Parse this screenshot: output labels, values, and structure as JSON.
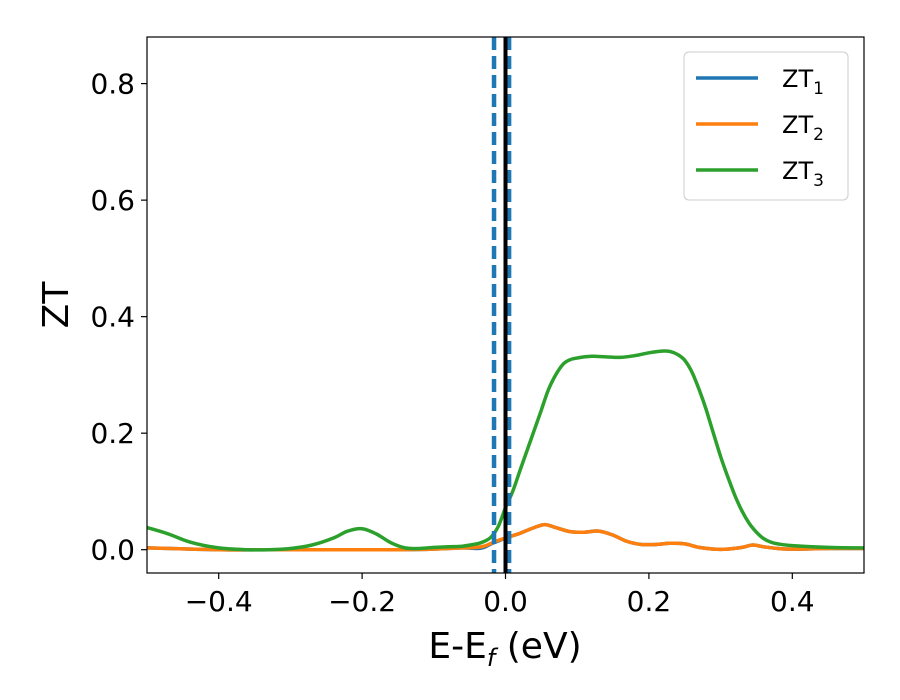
{
  "chart_data": {
    "type": "line",
    "xlabel_main": "E-E",
    "xlabel_sub": "f",
    "xlabel_unit": " (eV)",
    "ylabel": "ZT",
    "xlim": [
      -0.5,
      0.5
    ],
    "ylim": [
      -0.04,
      0.88
    ],
    "xticks": [
      -0.4,
      -0.2,
      0.0,
      0.2,
      0.4
    ],
    "xtick_labels": [
      "−0.4",
      "−0.2",
      "0.0",
      "0.2",
      "0.4"
    ],
    "yticks": [
      0.0,
      0.2,
      0.4,
      0.6,
      0.8
    ],
    "ytick_labels": [
      "0.0",
      "0.2",
      "0.4",
      "0.6",
      "0.8"
    ],
    "grid": false,
    "legend_position": "top-right",
    "series": [
      {
        "name": "ZT",
        "name_sub": "1",
        "color": "#1f77b4",
        "x": [
          -0.5,
          -0.4,
          -0.3,
          -0.2,
          -0.15,
          -0.1,
          -0.06,
          -0.04,
          -0.03,
          -0.02,
          -0.01,
          0.0,
          0.01,
          0.02,
          0.04,
          0.055,
          0.07,
          0.09,
          0.11,
          0.13,
          0.15,
          0.17,
          0.19,
          0.21,
          0.23,
          0.25,
          0.27,
          0.29,
          0.31,
          0.33,
          0.345,
          0.36,
          0.38,
          0.4,
          0.45,
          0.5
        ],
        "y": [
          0.003,
          0.0,
          0.0,
          0.0,
          0.0,
          0.001,
          0.003,
          0.002,
          0.004,
          0.01,
          0.015,
          0.02,
          0.024,
          0.028,
          0.038,
          0.043,
          0.038,
          0.031,
          0.03,
          0.032,
          0.025,
          0.014,
          0.009,
          0.009,
          0.011,
          0.01,
          0.004,
          0.001,
          0.001,
          0.004,
          0.008,
          0.005,
          0.002,
          0.001,
          0.002,
          0.002
        ]
      },
      {
        "name": "ZT",
        "name_sub": "2",
        "color": "#ff7f0e",
        "x": [
          -0.5,
          -0.4,
          -0.3,
          -0.2,
          -0.15,
          -0.1,
          -0.06,
          -0.04,
          -0.03,
          -0.02,
          -0.01,
          0.0,
          0.01,
          0.02,
          0.04,
          0.055,
          0.07,
          0.09,
          0.11,
          0.13,
          0.15,
          0.17,
          0.19,
          0.21,
          0.23,
          0.25,
          0.27,
          0.29,
          0.31,
          0.33,
          0.345,
          0.36,
          0.38,
          0.4,
          0.45,
          0.5
        ],
        "y": [
          0.003,
          0.0,
          0.0,
          0.0,
          0.0,
          0.001,
          0.003,
          0.004,
          0.006,
          0.011,
          0.016,
          0.02,
          0.024,
          0.028,
          0.038,
          0.043,
          0.038,
          0.031,
          0.03,
          0.032,
          0.025,
          0.014,
          0.009,
          0.009,
          0.011,
          0.01,
          0.004,
          0.001,
          0.001,
          0.004,
          0.008,
          0.005,
          0.002,
          0.001,
          0.002,
          0.002
        ]
      },
      {
        "name": "ZT",
        "name_sub": "3",
        "color": "#2ca02c",
        "x": [
          -0.5,
          -0.47,
          -0.44,
          -0.4,
          -0.36,
          -0.33,
          -0.3,
          -0.27,
          -0.24,
          -0.22,
          -0.2,
          -0.18,
          -0.16,
          -0.14,
          -0.12,
          -0.1,
          -0.08,
          -0.06,
          -0.04,
          -0.03,
          -0.02,
          -0.01,
          0.0,
          0.01,
          0.02,
          0.03,
          0.04,
          0.05,
          0.06,
          0.07,
          0.08,
          0.09,
          0.1,
          0.12,
          0.14,
          0.16,
          0.18,
          0.2,
          0.22,
          0.23,
          0.24,
          0.25,
          0.26,
          0.27,
          0.28,
          0.29,
          0.3,
          0.31,
          0.32,
          0.33,
          0.34,
          0.35,
          0.36,
          0.37,
          0.38,
          0.4,
          0.45,
          0.5
        ],
        "y": [
          0.038,
          0.027,
          0.013,
          0.003,
          0.0,
          0.0,
          0.002,
          0.008,
          0.02,
          0.032,
          0.036,
          0.027,
          0.012,
          0.003,
          0.002,
          0.004,
          0.005,
          0.006,
          0.01,
          0.014,
          0.022,
          0.04,
          0.072,
          0.1,
          0.135,
          0.17,
          0.205,
          0.24,
          0.275,
          0.3,
          0.318,
          0.326,
          0.329,
          0.332,
          0.331,
          0.33,
          0.333,
          0.338,
          0.341,
          0.34,
          0.335,
          0.325,
          0.305,
          0.275,
          0.24,
          0.2,
          0.16,
          0.125,
          0.093,
          0.066,
          0.045,
          0.03,
          0.019,
          0.013,
          0.01,
          0.007,
          0.004,
          0.003
        ]
      }
    ],
    "vlines": [
      {
        "x": -0.016,
        "color": "#1f77b4",
        "style": "dashed"
      },
      {
        "x": 0.005,
        "color": "#1f77b4",
        "style": "dashed"
      },
      {
        "x": 0.0,
        "color": "#000000",
        "style": "solid"
      }
    ]
  }
}
